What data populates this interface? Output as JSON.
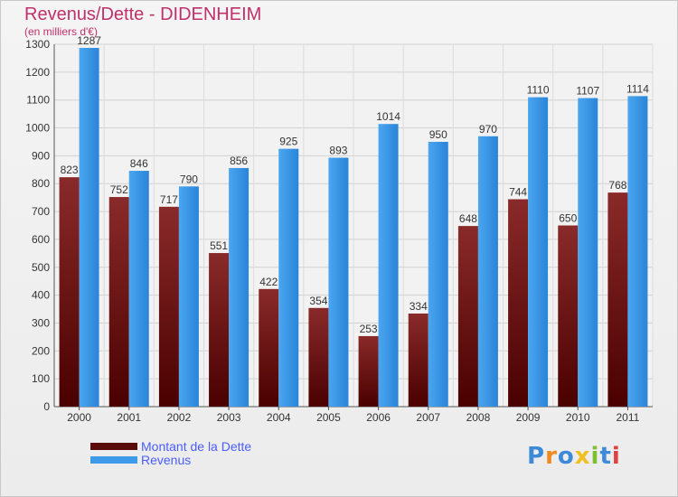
{
  "title": "Revenus/Dette - DIDENHEIM",
  "subtitle": "(en milliers d'€)",
  "chart_data": {
    "type": "bar",
    "categories": [
      "2000",
      "2001",
      "2002",
      "2003",
      "2004",
      "2005",
      "2006",
      "2007",
      "2008",
      "2009",
      "2010",
      "2011"
    ],
    "series": [
      {
        "name": "Montant de la Dette",
        "color": "#7a1c1c",
        "values": [
          823,
          752,
          717,
          551,
          422,
          354,
          253,
          334,
          648,
          744,
          650,
          768
        ]
      },
      {
        "name": "Revenus",
        "color": "#3d9ae8",
        "values": [
          1287,
          846,
          790,
          856,
          925,
          893,
          1014,
          950,
          970,
          1110,
          1107,
          1114
        ]
      }
    ],
    "ylim": [
      0,
      1300
    ],
    "yticks": [
      0,
      100,
      200,
      300,
      400,
      500,
      600,
      700,
      800,
      900,
      1000,
      1100,
      1200,
      1300
    ],
    "grid": true,
    "legend_position": "bottom-left"
  },
  "logo": {
    "text": "Proxiti",
    "letters": [
      {
        "ch": "P",
        "color": "#3d8ad8"
      },
      {
        "ch": "r",
        "color": "#f08a20"
      },
      {
        "ch": "o",
        "color": "#3d8ad8"
      },
      {
        "ch": "x",
        "color": "#f0c020"
      },
      {
        "ch": "i",
        "color": "#7ac030"
      },
      {
        "ch": "t",
        "color": "#3d8ad8"
      },
      {
        "ch": "i",
        "color": "#e04040"
      }
    ]
  }
}
